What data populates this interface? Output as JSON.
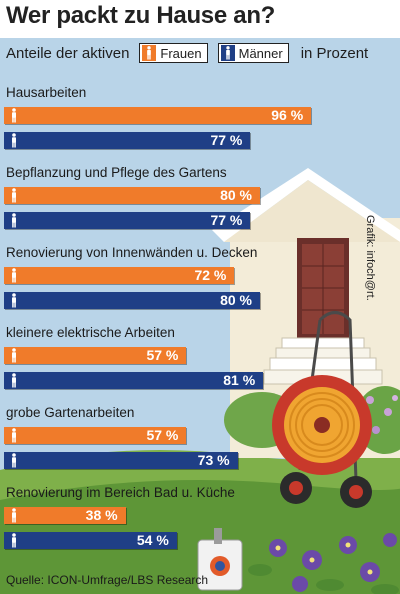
{
  "title": "Wer packt zu Hause an?",
  "subtitle": "Anteile der aktiven",
  "subtitle_suffix": "in Prozent",
  "legend": {
    "women": "Frauen",
    "men": "Männer"
  },
  "credit": "Grafik: infoch@rt.",
  "source": "Quelle: ICON-Umfrage/LBS Research",
  "colors": {
    "women": "#f07b2a",
    "men": "#1f3f86"
  },
  "chart_data": {
    "type": "bar",
    "orientation": "horizontal",
    "unit": "%",
    "ylim": [
      0,
      100
    ],
    "categories": [
      "Hausarbeiten",
      "Bepflanzung und Pflege des Gartens",
      "Renovierung von Innenwänden u. Decken",
      "kleinere elektrische Arbeiten",
      "grobe Gartenarbeiten",
      "Renovierung im Bereich Bad u. Küche"
    ],
    "series": [
      {
        "name": "Frauen",
        "values": [
          96,
          80,
          72,
          57,
          57,
          38
        ],
        "labels": [
          "96 %",
          "80 %",
          "72 %",
          "57 %",
          "57 %",
          "38 %"
        ]
      },
      {
        "name": "Männer",
        "values": [
          77,
          77,
          80,
          81,
          73,
          54
        ],
        "labels": [
          "77 %",
          "77 %",
          "80 %",
          "81 %",
          "73 %",
          "54 %"
        ]
      }
    ]
  }
}
